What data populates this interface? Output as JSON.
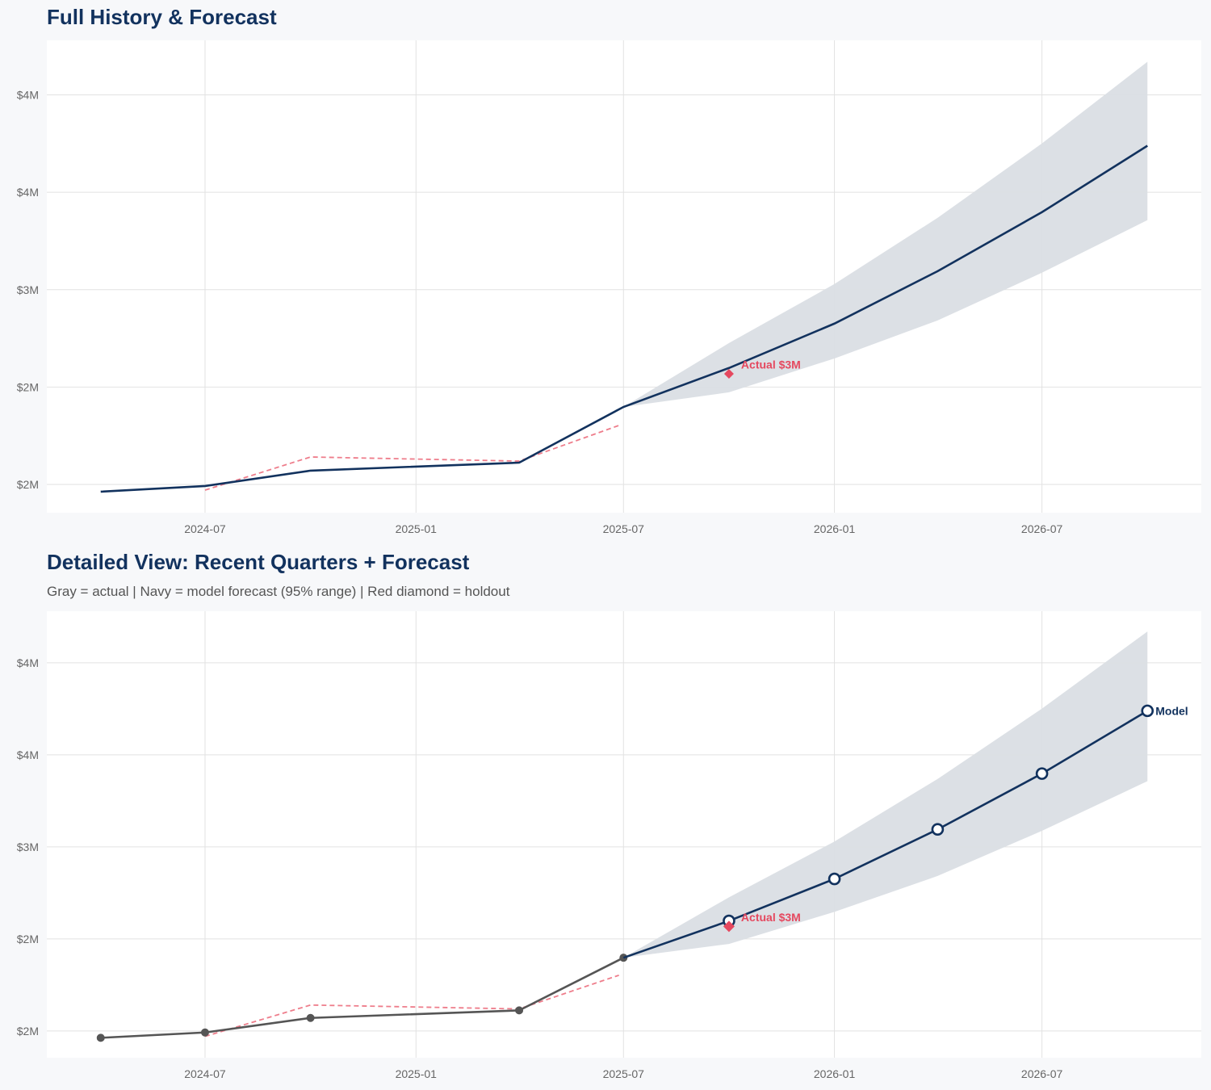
{
  "colors": {
    "navy": "#12325e",
    "band": "#dadee4",
    "red": "#e5485f",
    "red_dashed": "#ee7d8b",
    "gray_actual": "#555555",
    "grid": "#e2e2e2",
    "panel": "#ffffff",
    "background": "#f7f8fa"
  },
  "chart_data": [
    {
      "type": "line",
      "title": "Full History & Forecast",
      "xlim": [
        "2024-02-14",
        "2026-11-17"
      ],
      "ylim": [
        1.855,
        4.28
      ],
      "y_ticks": [
        2.0,
        2.5,
        3.0,
        3.5,
        4.0
      ],
      "y_tick_labels": [
        "$2M",
        "$2M",
        "$3M",
        "$4M",
        "$4M"
      ],
      "x_ticks": [
        "2024-07-01",
        "2025-01-01",
        "2025-07-01",
        "2026-01-01",
        "2026-07-01"
      ],
      "x_tick_labels": [
        "2024-07",
        "2025-01",
        "2025-07",
        "2026-01",
        "2026-07"
      ],
      "grid": true,
      "series": [
        {
          "role": "history+forecast",
          "style": "solid navy",
          "x": [
            "2024-04-01",
            "2024-07-01",
            "2024-10-01",
            "2025-04-01",
            "2025-07-01",
            "2025-10-01",
            "2026-01-01",
            "2026-04-01",
            "2026-07-01",
            "2026-10-01"
          ],
          "y": [
            1.963,
            1.992,
            2.071,
            2.112,
            2.398,
            2.598,
            2.826,
            3.095,
            3.398,
            3.739
          ]
        },
        {
          "role": "fitted",
          "style": "dashed red",
          "x": [
            "2024-07-01",
            "2024-10-01",
            "2025-04-01",
            "2025-06-27"
          ],
          "y": [
            1.971,
            2.141,
            2.12,
            2.303
          ]
        }
      ],
      "band": {
        "x": [
          "2025-07-01",
          "2025-10-01",
          "2026-01-01",
          "2026-04-01",
          "2026-07-01",
          "2026-10-01"
        ],
        "lower": [
          2.398,
          2.473,
          2.647,
          2.842,
          3.087,
          3.357
        ],
        "upper": [
          2.398,
          2.726,
          3.029,
          3.369,
          3.751,
          4.17
        ]
      },
      "holdout": {
        "x": "2025-10-01",
        "y": 2.568,
        "label": "Actual $3M"
      }
    },
    {
      "type": "line",
      "title": "Detailed View: Recent Quarters + Forecast",
      "subtitle": "Gray = actual  |  Navy = model forecast (95% range)  |  Red diamond = holdout",
      "xlim": [
        "2024-02-14",
        "2026-11-17"
      ],
      "ylim": [
        1.855,
        4.28
      ],
      "y_ticks": [
        2.0,
        2.5,
        3.0,
        3.5,
        4.0
      ],
      "y_tick_labels": [
        "$2M",
        "$2M",
        "$3M",
        "$4M",
        "$4M"
      ],
      "x_ticks": [
        "2024-07-01",
        "2025-01-01",
        "2025-07-01",
        "2026-01-01",
        "2026-07-01"
      ],
      "x_tick_labels": [
        "2024-07",
        "2025-01",
        "2025-07",
        "2026-01",
        "2026-07"
      ],
      "grid": true,
      "series": [
        {
          "role": "actual",
          "style": "gray with dots",
          "x": [
            "2024-04-01",
            "2024-07-01",
            "2024-10-01",
            "2025-04-01",
            "2025-07-01"
          ],
          "y": [
            1.963,
            1.992,
            2.071,
            2.112,
            2.398
          ]
        },
        {
          "role": "forecast",
          "name": "Model",
          "style": "navy with open circles",
          "x": [
            "2025-07-01",
            "2025-10-01",
            "2026-01-01",
            "2026-04-01",
            "2026-07-01",
            "2026-10-01"
          ],
          "y": [
            2.398,
            2.598,
            2.826,
            3.095,
            3.398,
            3.739
          ]
        },
        {
          "role": "fitted",
          "style": "dashed red",
          "x": [
            "2024-07-01",
            "2024-10-01",
            "2025-04-01",
            "2025-06-27"
          ],
          "y": [
            1.971,
            2.141,
            2.12,
            2.303
          ]
        }
      ],
      "band": {
        "x": [
          "2025-07-01",
          "2025-10-01",
          "2026-01-01",
          "2026-04-01",
          "2026-07-01",
          "2026-10-01"
        ],
        "lower": [
          2.398,
          2.473,
          2.647,
          2.842,
          3.087,
          3.357
        ],
        "upper": [
          2.398,
          2.726,
          3.029,
          3.369,
          3.751,
          4.17
        ]
      },
      "holdout": {
        "x": "2025-10-01",
        "y": 2.568,
        "label": "Actual $3M"
      }
    }
  ]
}
